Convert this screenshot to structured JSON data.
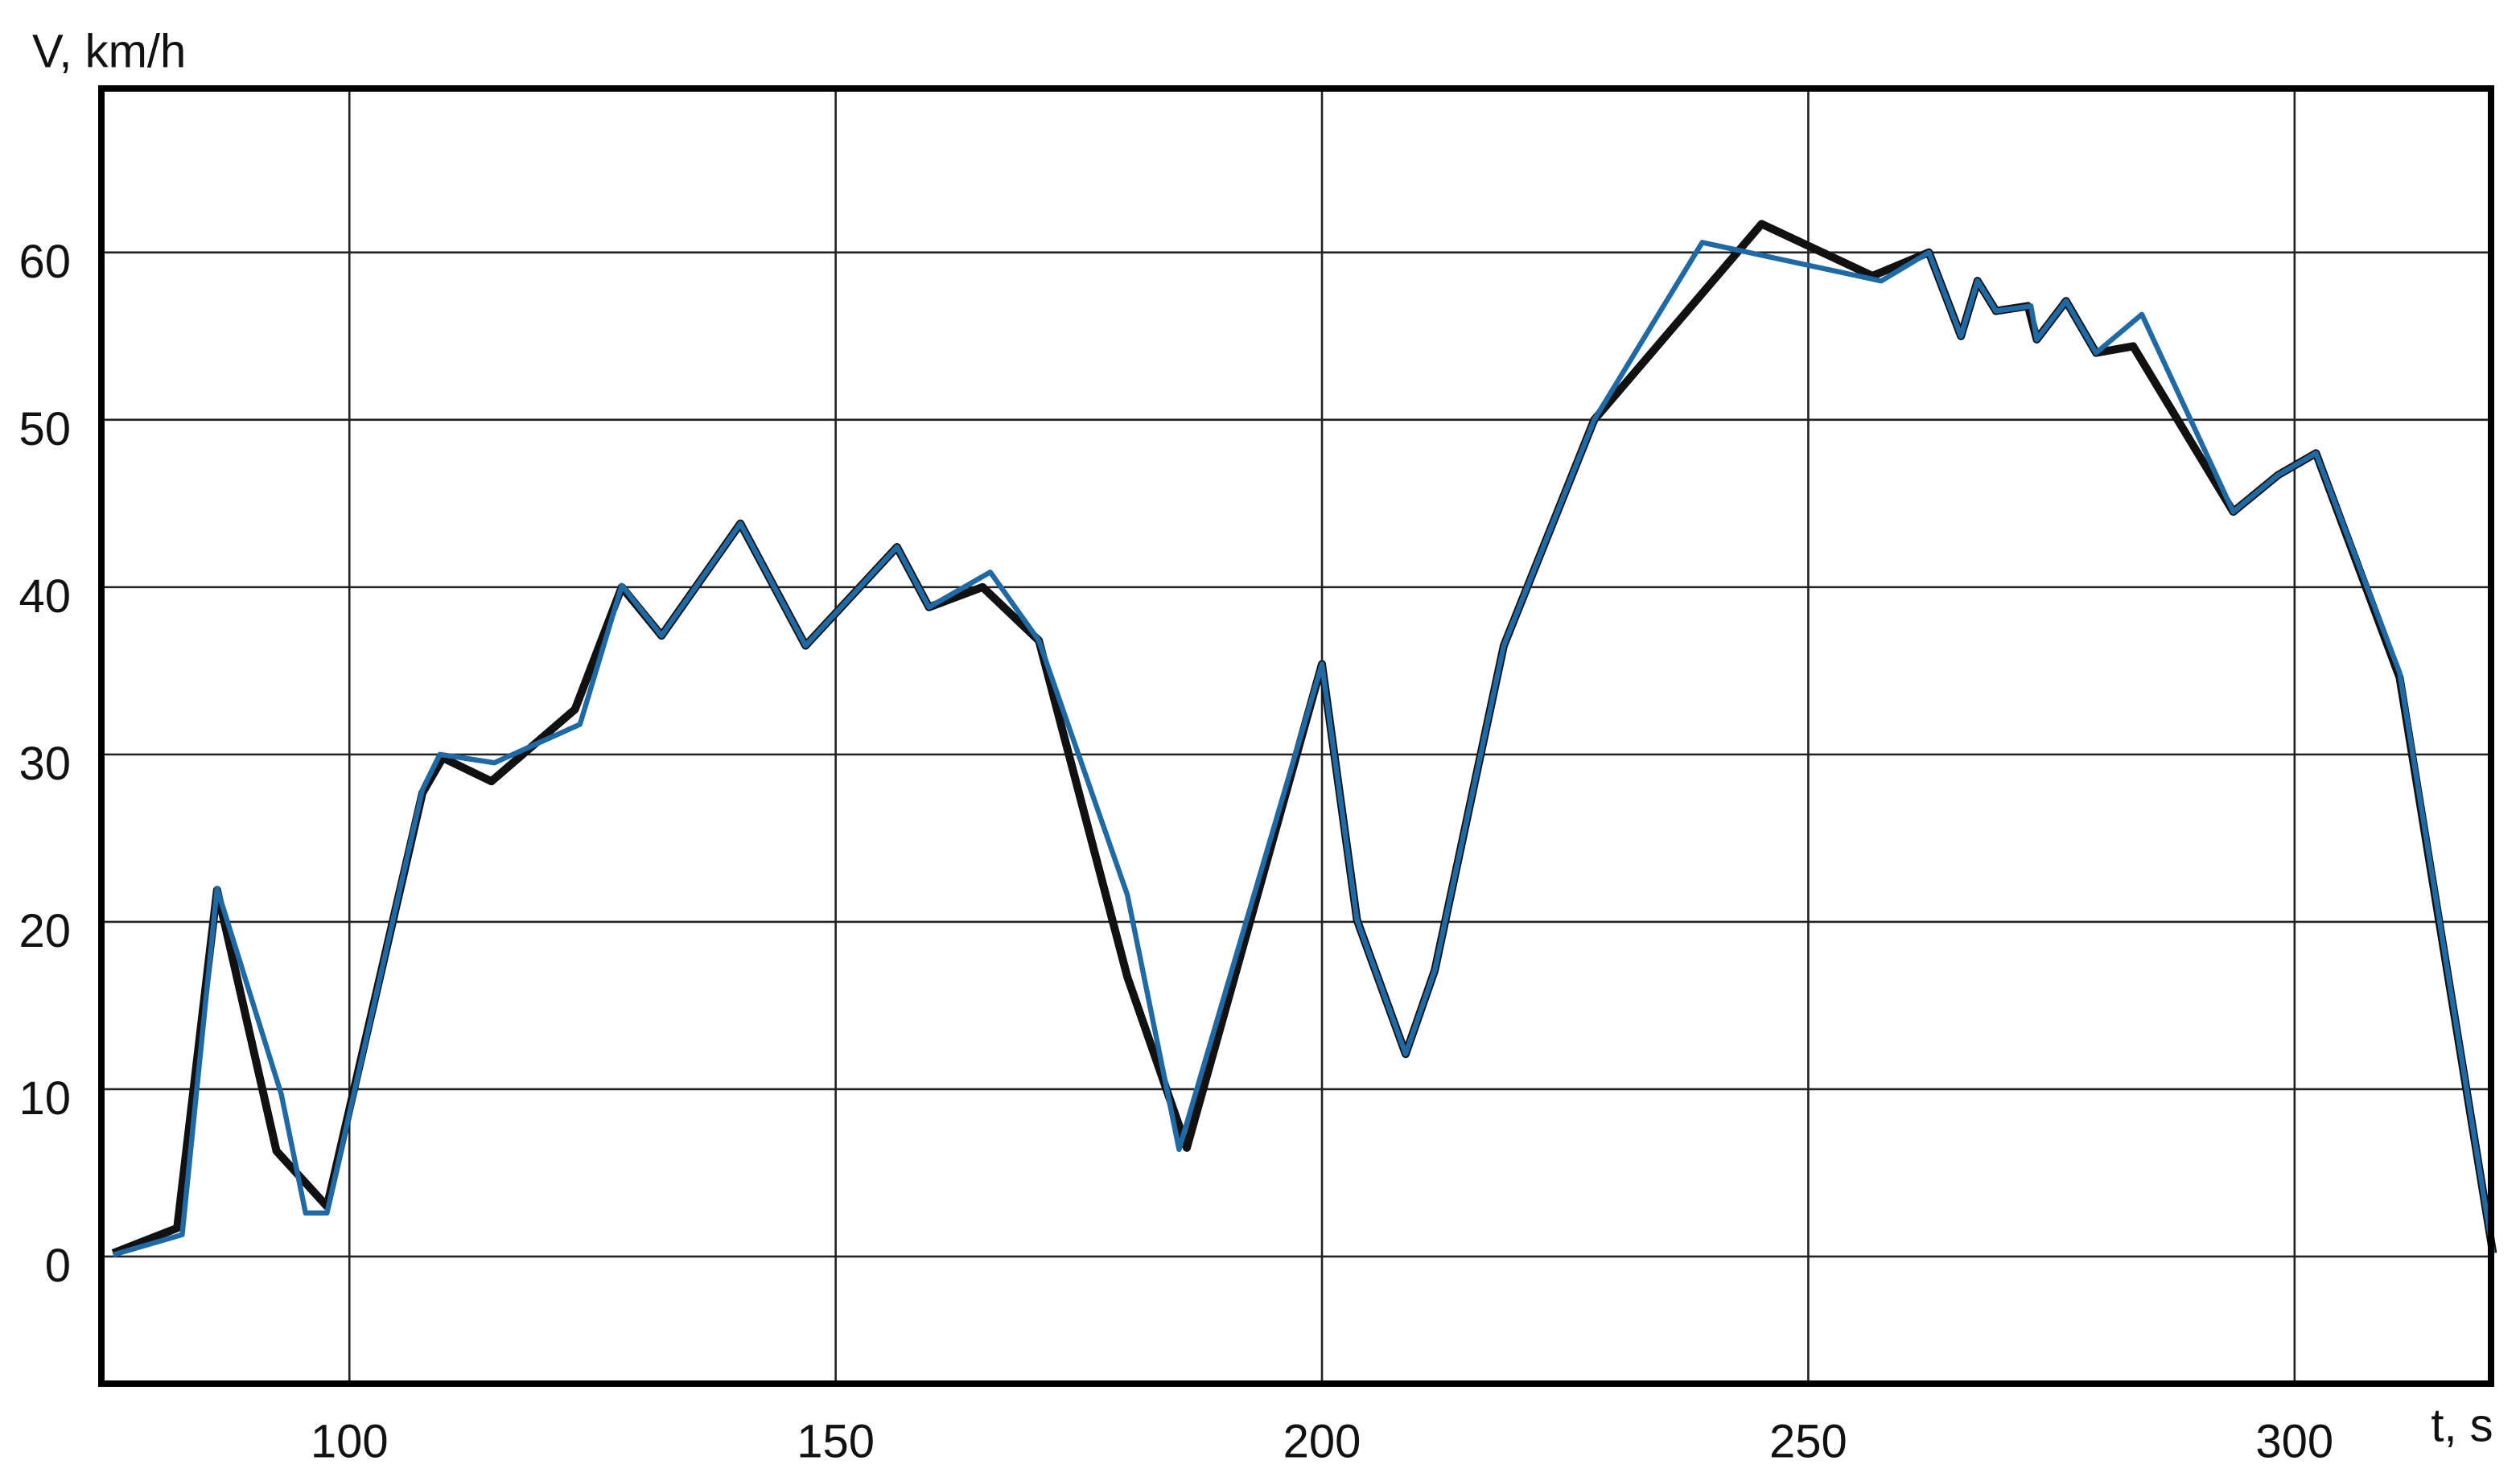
{
  "chart_data": {
    "type": "line",
    "x_label": "t, s",
    "y_label": "V, km/h",
    "xlim": [
      74.5,
      320.2
    ],
    "ylim": [
      -7.6,
      69.8
    ],
    "xticks": [
      100,
      150,
      200,
      250,
      300
    ],
    "yticks": [
      0,
      10,
      20,
      30,
      40,
      50,
      60
    ],
    "grid": true,
    "series": [
      {
        "color": "#111111",
        "x": [
          75.7,
          82.3,
          86.4,
          92.5,
          97.7,
          107.5,
          109.6,
          114.6,
          123.2,
          128,
          132.1,
          140.2,
          146.9,
          156.3,
          159.6,
          165.1,
          170.9,
          180,
          186.1,
          200,
          203.6,
          208.6,
          211.6,
          218.7,
          228,
          245.2,
          256.6,
          262.4,
          265.7,
          267.4,
          269.3,
          272.6,
          273.5,
          276.5,
          279.6,
          283.4,
          293.7,
          298.3,
          302.2,
          310.8,
          320.4
        ],
        "values": [
          0.2,
          1.7,
          21.9,
          6.3,
          3.0,
          27.7,
          29.8,
          28.4,
          32.7,
          40,
          37.1,
          43.8,
          36.5,
          42.4,
          38.8,
          40,
          36.8,
          16.7,
          6.5,
          35.4,
          20.1,
          12.1,
          17.1,
          36.5,
          50,
          61.7,
          58.6,
          60,
          55,
          58.3,
          56.5,
          56.8,
          54.8,
          57.1,
          54,
          54.4,
          44.5,
          46.7,
          48,
          34.6,
          0.2
        ]
      },
      {
        "color": "#1f6aa5",
        "x": [
          75.7,
          82.8,
          86.4,
          93,
          95.5,
          97.7,
          107.5,
          109.3,
          114.9,
          123.7,
          128,
          132.1,
          140.2,
          146.9,
          156.3,
          159.6,
          165.9,
          170.9,
          180,
          185.3,
          200,
          203.6,
          208.6,
          211.6,
          218.7,
          228,
          239.1,
          257.5,
          262.4,
          265.7,
          267.4,
          269.3,
          272.9,
          273.5,
          276.5,
          279.6,
          284.3,
          293.7,
          298.3,
          302.2,
          310.8,
          320.4
        ],
        "values": [
          0.1,
          1.3,
          22,
          9.7,
          2.6,
          2.6,
          27.9,
          30,
          29.5,
          31.8,
          40.1,
          37.1,
          43.8,
          36.5,
          42.4,
          38.8,
          40.9,
          36.8,
          21.6,
          6.4,
          35.4,
          20.1,
          12.1,
          17.1,
          36.5,
          50,
          60.6,
          58.3,
          60,
          55,
          58.3,
          56.5,
          56.8,
          54.8,
          57.1,
          54,
          56.3,
          44.5,
          46.7,
          48,
          34.9,
          0.2
        ]
      }
    ]
  }
}
